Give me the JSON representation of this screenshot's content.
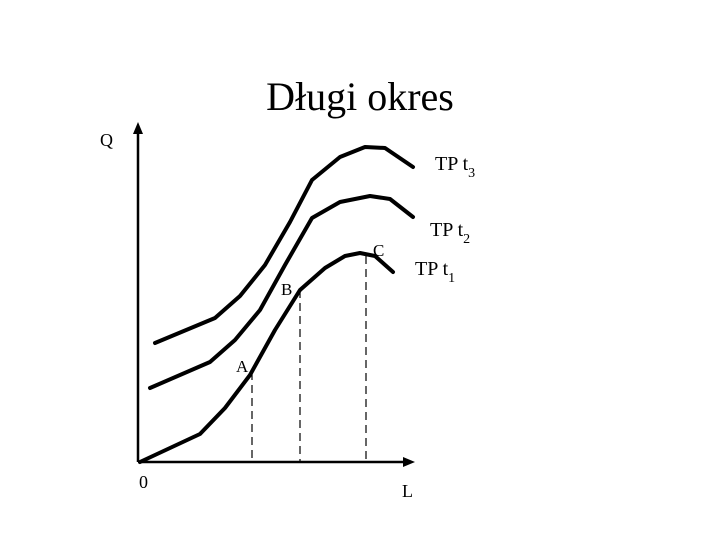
{
  "title": "Długi okres",
  "axes": {
    "y_label": "Q",
    "x_label": "L",
    "origin": "0"
  },
  "curves": [
    {
      "label": "TP t",
      "subscript": "3"
    },
    {
      "label": "TP t",
      "subscript": "2"
    },
    {
      "label": "TP t",
      "subscript": "1"
    }
  ],
  "points": [
    "A",
    "B",
    "C"
  ]
}
